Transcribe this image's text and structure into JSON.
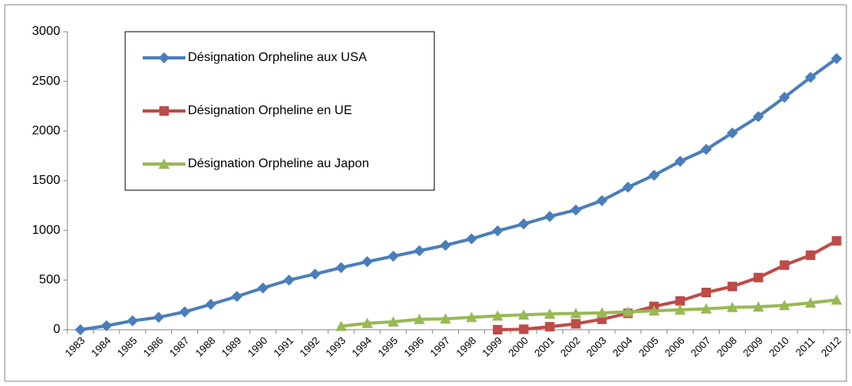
{
  "chart_data": {
    "type": "line",
    "categories": [
      "1983",
      "1984",
      "1985",
      "1986",
      "1987",
      "1988",
      "1989",
      "1990",
      "1991",
      "1992",
      "1993",
      "1994",
      "1995",
      "1996",
      "1997",
      "1998",
      "1999",
      "2000",
      "2001",
      "2002",
      "2003",
      "2004",
      "2005",
      "2006",
      "2007",
      "2008",
      "2009",
      "2010",
      "2011",
      "2012"
    ],
    "series": [
      {
        "name": "Désignation Orpheline aux USA",
        "color": "#4a7ebb",
        "marker": "diamond",
        "values": [
          0,
          40,
          90,
          125,
          180,
          255,
          335,
          420,
          500,
          560,
          625,
          685,
          740,
          795,
          850,
          915,
          995,
          1065,
          1140,
          1205,
          1300,
          1435,
          1555,
          1695,
          1815,
          1980,
          2145,
          2340,
          2540,
          2730
        ]
      },
      {
        "name": "Désignation Orpheline en UE",
        "color": "#be4b48",
        "marker": "square",
        "values": [
          null,
          null,
          null,
          null,
          null,
          null,
          null,
          null,
          null,
          null,
          null,
          null,
          null,
          null,
          null,
          null,
          0,
          5,
          30,
          60,
          105,
          165,
          235,
          290,
          375,
          435,
          525,
          650,
          750,
          895
        ]
      },
      {
        "name": "Désignation Orpheline au Japon",
        "color": "#98b954",
        "marker": "triangle",
        "values": [
          null,
          null,
          null,
          null,
          null,
          null,
          null,
          null,
          null,
          null,
          35,
          65,
          80,
          105,
          110,
          125,
          140,
          150,
          160,
          165,
          170,
          180,
          190,
          200,
          210,
          225,
          230,
          245,
          270,
          300
        ]
      }
    ],
    "ylim": [
      0,
      3000
    ],
    "yticks": [
      0,
      500,
      1000,
      1500,
      2000,
      2500,
      3000
    ],
    "grid": false,
    "legend": "top-left"
  }
}
